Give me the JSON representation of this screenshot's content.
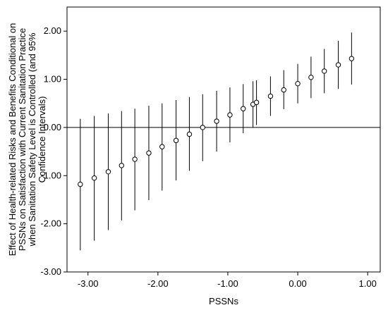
{
  "chart_data": {
    "type": "scatter",
    "xlabel": "PSSNs",
    "ylabel_lines": [
      "Effect of Health-related Risks and Benefits Conditional on",
      "PSSNs on Satisfaction with Current Sanitation Practice",
      "when Sanitation Safety Level is Controlled (and 95%",
      "Confidence Intervals)"
    ],
    "xlim": [
      -3.3,
      1.18
    ],
    "ylim": [
      -3.0,
      2.5
    ],
    "x_ticks": [
      {
        "value": -3.0,
        "label": "-3.00"
      },
      {
        "value": -2.0,
        "label": "-2.00"
      },
      {
        "value": -1.0,
        "label": "-1.00"
      },
      {
        "value": 0.0,
        "label": "0.00"
      },
      {
        "value": 1.0,
        "label": "1.00"
      }
    ],
    "y_ticks": [
      {
        "value": 2.0,
        "label": "2.00"
      },
      {
        "value": 1.0,
        "label": "1.00"
      },
      {
        "value": 0.0,
        "label": "0.00"
      },
      {
        "value": -1.0,
        "label": "-1.00"
      },
      {
        "value": -2.0,
        "label": "-2.00"
      },
      {
        "value": -3.0,
        "label": "-3.00"
      }
    ],
    "reference_line_y": 0,
    "grid": false,
    "points": [
      {
        "x": -3.11,
        "y": -1.18,
        "lower": -2.55,
        "upper": 0.18
      },
      {
        "x": -2.91,
        "y": -1.05,
        "lower": -2.35,
        "upper": 0.24
      },
      {
        "x": -2.71,
        "y": -0.92,
        "lower": -2.13,
        "upper": 0.29
      },
      {
        "x": -2.52,
        "y": -0.79,
        "lower": -1.93,
        "upper": 0.34
      },
      {
        "x": -2.33,
        "y": -0.66,
        "lower": -1.72,
        "upper": 0.39
      },
      {
        "x": -2.13,
        "y": -0.53,
        "lower": -1.51,
        "upper": 0.45
      },
      {
        "x": -1.94,
        "y": -0.4,
        "lower": -1.31,
        "upper": 0.5
      },
      {
        "x": -1.74,
        "y": -0.27,
        "lower": -1.1,
        "upper": 0.57
      },
      {
        "x": -1.55,
        "y": -0.14,
        "lower": -0.9,
        "upper": 0.63
      },
      {
        "x": -1.36,
        "y": 0.0,
        "lower": -0.7,
        "upper": 0.69
      },
      {
        "x": -1.16,
        "y": 0.13,
        "lower": -0.5,
        "upper": 0.76
      },
      {
        "x": -0.97,
        "y": 0.26,
        "lower": -0.31,
        "upper": 0.83
      },
      {
        "x": -0.78,
        "y": 0.39,
        "lower": -0.12,
        "upper": 0.9
      },
      {
        "x": -0.64,
        "y": 0.48,
        "lower": 0.0,
        "upper": 0.96
      },
      {
        "x": -0.59,
        "y": 0.52,
        "lower": 0.05,
        "upper": 0.98
      },
      {
        "x": -0.39,
        "y": 0.65,
        "lower": 0.24,
        "upper": 1.06
      },
      {
        "x": -0.2,
        "y": 0.78,
        "lower": 0.38,
        "upper": 1.19
      },
      {
        "x": 0.0,
        "y": 0.91,
        "lower": 0.5,
        "upper": 1.32
      },
      {
        "x": 0.19,
        "y": 1.04,
        "lower": 0.61,
        "upper": 1.47
      },
      {
        "x": 0.38,
        "y": 1.17,
        "lower": 0.71,
        "upper": 1.63
      },
      {
        "x": 0.58,
        "y": 1.3,
        "lower": 0.8,
        "upper": 1.8
      },
      {
        "x": 0.77,
        "y": 1.43,
        "lower": 0.89,
        "upper": 1.97
      }
    ]
  }
}
